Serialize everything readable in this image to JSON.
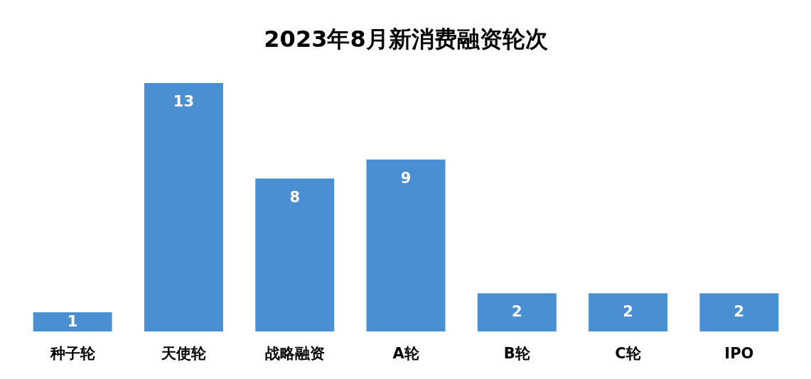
{
  "chart_data": {
    "type": "bar",
    "title": "2023年8月新消费融资轮次",
    "categories": [
      "种子轮",
      "天使轮",
      "战略融资",
      "A轮",
      "B轮",
      "C轮",
      "IPO"
    ],
    "values": [
      1,
      13,
      8,
      9,
      2,
      2,
      2
    ],
    "color": "#4a8fd2",
    "data_labels": true
  }
}
